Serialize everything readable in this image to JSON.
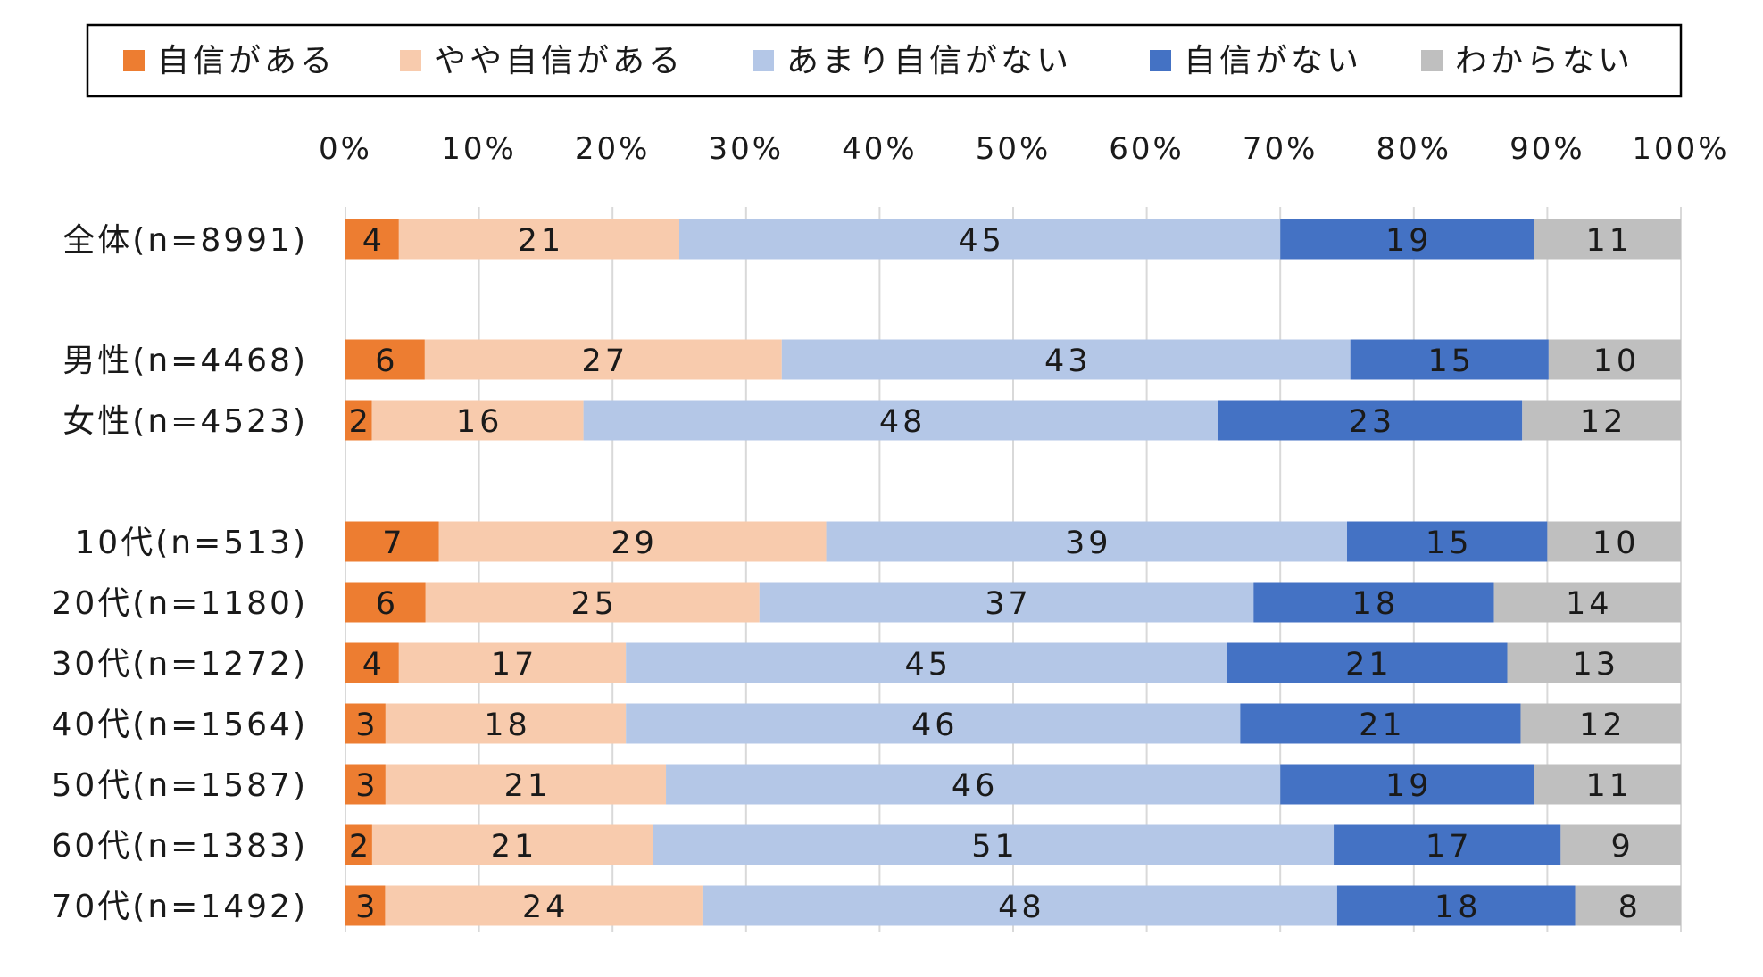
{
  "chart_data": {
    "type": "bar",
    "orientation": "horizontal",
    "stacked": true,
    "legend_position": "top",
    "grid": true,
    "xlim": [
      0,
      100
    ],
    "x_ticks": [
      "0%",
      "10%",
      "20%",
      "30%",
      "40%",
      "50%",
      "60%",
      "70%",
      "80%",
      "90%",
      "100%"
    ],
    "categories": [
      "全体(n=8991)",
      "男性(n=4468)",
      "女性(n=4523)",
      "10代(n=513)",
      "20代(n=1180)",
      "30代(n=1272)",
      "40代(n=1564)",
      "50代(n=1587)",
      "60代(n=1383)",
      "70代(n=1492)"
    ],
    "series": [
      {
        "name": "自信がある",
        "color": "#ED7D31",
        "values": [
          4,
          6,
          2,
          7,
          6,
          4,
          3,
          3,
          2,
          3
        ]
      },
      {
        "name": "やや自信がある",
        "color": "#F8CBAD",
        "values": [
          21,
          27,
          16,
          29,
          25,
          17,
          18,
          21,
          21,
          24
        ]
      },
      {
        "name": "あまり自信がない",
        "color": "#B4C7E7",
        "values": [
          45,
          43,
          48,
          39,
          37,
          45,
          46,
          46,
          51,
          48
        ]
      },
      {
        "name": "自信がない",
        "color": "#4472C4",
        "values": [
          19,
          15,
          23,
          15,
          18,
          21,
          21,
          19,
          17,
          18
        ]
      },
      {
        "name": "わからない",
        "color": "#BFBFBF",
        "values": [
          11,
          10,
          12,
          10,
          14,
          13,
          12,
          11,
          9,
          8
        ]
      }
    ]
  }
}
